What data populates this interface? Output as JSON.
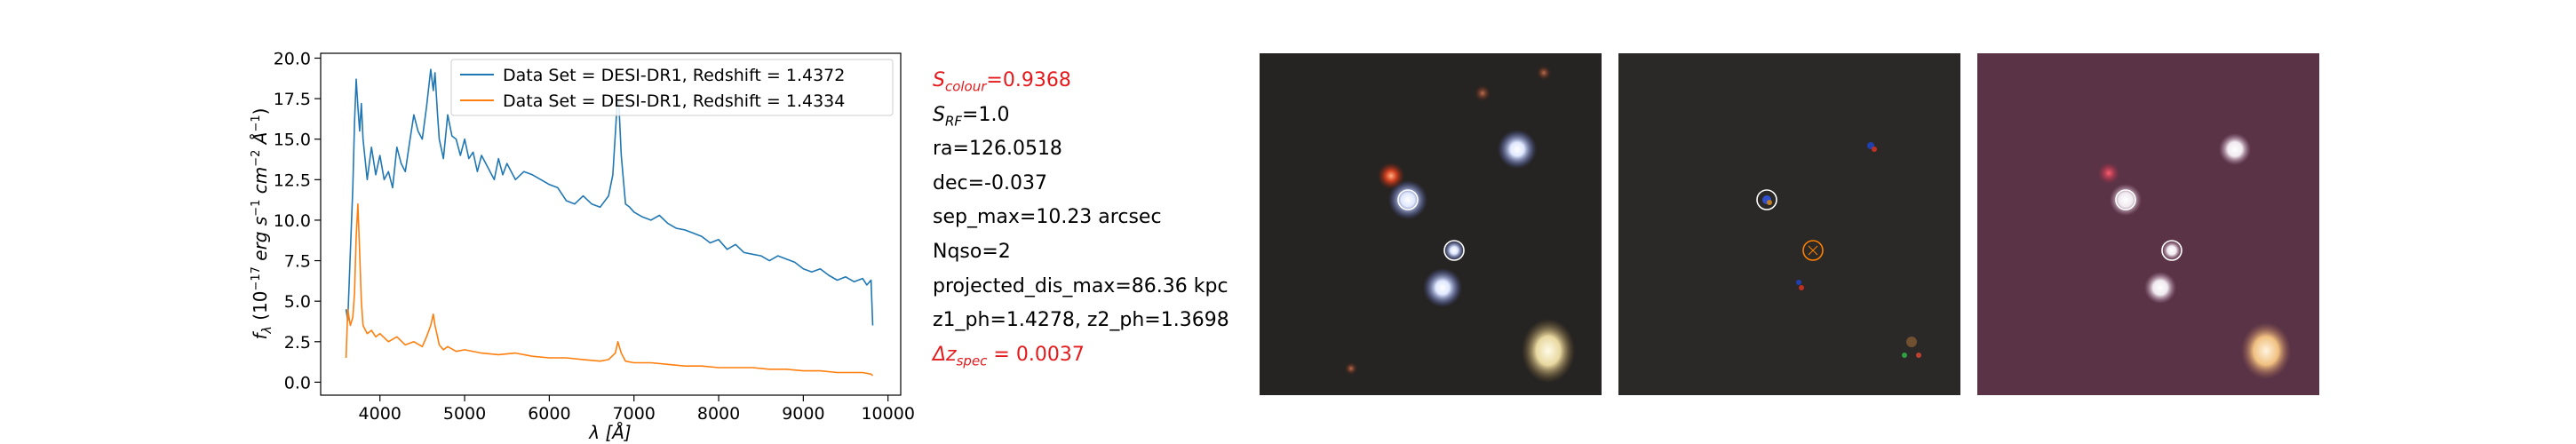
{
  "chart_data": {
    "type": "line",
    "xlabel": "λ [Å]",
    "ylabel": "f_λ (10^-17 erg s^-1 cm^-2 Å^-1)",
    "xlim": [
      3300,
      10150
    ],
    "ylim": [
      -0.8,
      20.3
    ],
    "xticks": [
      4000,
      5000,
      6000,
      7000,
      8000,
      9000,
      10000
    ],
    "yticks": [
      0.0,
      2.5,
      5.0,
      7.5,
      10.0,
      12.5,
      15.0,
      17.5,
      20.0
    ],
    "legend_position": "top-right",
    "grid": false,
    "series": [
      {
        "name": "Data Set = DESI-DR1, Redshift = 1.4372",
        "color": "#1f77b4",
        "x": [
          3600,
          3620,
          3650,
          3680,
          3700,
          3720,
          3740,
          3760,
          3780,
          3800,
          3850,
          3900,
          3950,
          4000,
          4050,
          4100,
          4150,
          4200,
          4250,
          4300,
          4350,
          4400,
          4450,
          4500,
          4550,
          4600,
          4630,
          4650,
          4680,
          4700,
          4750,
          4800,
          4850,
          4900,
          4950,
          5000,
          5050,
          5100,
          5150,
          5200,
          5250,
          5300,
          5350,
          5400,
          5450,
          5500,
          5600,
          5700,
          5800,
          5900,
          6000,
          6100,
          6200,
          6300,
          6400,
          6500,
          6600,
          6700,
          6750,
          6800,
          6820,
          6850,
          6900,
          6950,
          7000,
          7100,
          7200,
          7300,
          7400,
          7500,
          7600,
          7700,
          7800,
          7900,
          8000,
          8100,
          8200,
          8300,
          8400,
          8500,
          8600,
          8700,
          8800,
          8900,
          9000,
          9100,
          9200,
          9300,
          9400,
          9500,
          9600,
          9700,
          9750,
          9800,
          9820
        ],
        "y": [
          4.5,
          3.8,
          8.0,
          12.0,
          16.0,
          18.7,
          17.0,
          15.5,
          17.2,
          15.0,
          12.5,
          14.5,
          12.8,
          14.0,
          12.5,
          13.0,
          12.0,
          14.5,
          13.5,
          13.0,
          14.8,
          16.5,
          15.5,
          15.0,
          17.0,
          19.3,
          18.0,
          19.1,
          16.5,
          15.0,
          13.8,
          16.5,
          15.2,
          15.0,
          14.0,
          15.0,
          13.8,
          14.2,
          13.0,
          14.0,
          13.5,
          13.0,
          12.5,
          13.8,
          12.8,
          13.5,
          12.5,
          13.0,
          12.8,
          12.5,
          12.2,
          12.0,
          11.2,
          11.0,
          11.5,
          11.0,
          10.8,
          11.5,
          12.8,
          17.0,
          17.3,
          14.0,
          11.0,
          10.8,
          10.5,
          10.2,
          10.0,
          10.3,
          9.8,
          9.5,
          9.4,
          9.2,
          9.0,
          8.6,
          8.8,
          8.2,
          8.5,
          8.0,
          7.9,
          7.8,
          7.5,
          7.8,
          7.6,
          7.4,
          7.0,
          6.8,
          7.0,
          6.6,
          6.3,
          6.5,
          6.2,
          6.4,
          6.0,
          6.3,
          3.5
        ]
      },
      {
        "name": "Data Set = DESI-DR1, Redshift = 1.4334",
        "color": "#ff7f0e",
        "x": [
          3600,
          3620,
          3650,
          3680,
          3700,
          3720,
          3740,
          3760,
          3780,
          3800,
          3850,
          3900,
          3950,
          4000,
          4100,
          4200,
          4300,
          4400,
          4500,
          4550,
          4600,
          4630,
          4650,
          4680,
          4700,
          4750,
          4800,
          4900,
          5000,
          5200,
          5400,
          5600,
          5800,
          6000,
          6200,
          6400,
          6600,
          6700,
          6780,
          6810,
          6850,
          6900,
          7000,
          7200,
          7400,
          7600,
          7800,
          8000,
          8200,
          8400,
          8600,
          8800,
          9000,
          9200,
          9400,
          9600,
          9700,
          9800,
          9820
        ],
        "y": [
          1.5,
          4.5,
          3.5,
          4.0,
          5.5,
          9.0,
          11.0,
          8.0,
          5.0,
          3.5,
          3.0,
          3.2,
          2.8,
          3.0,
          2.5,
          2.8,
          2.3,
          2.5,
          2.2,
          2.8,
          3.5,
          4.2,
          3.5,
          2.8,
          2.3,
          2.0,
          2.2,
          1.9,
          2.0,
          1.8,
          1.7,
          1.8,
          1.6,
          1.5,
          1.5,
          1.4,
          1.3,
          1.4,
          1.8,
          2.5,
          1.8,
          1.3,
          1.2,
          1.2,
          1.1,
          1.0,
          1.0,
          0.9,
          0.9,
          0.9,
          0.8,
          0.8,
          0.7,
          0.7,
          0.6,
          0.6,
          0.6,
          0.5,
          0.4
        ]
      }
    ]
  },
  "info": {
    "s_colour": {
      "symbol": "S",
      "sub": "colour",
      "value": "=0.9368",
      "color": "#e41a1c"
    },
    "s_rf": {
      "symbol": "S",
      "sub": "RF",
      "value": "=1.0"
    },
    "ra": "ra=126.0518",
    "dec": "dec=-0.037",
    "sep_max": "sep_max=10.23 arcsec",
    "nqso": "Nqso=2",
    "projected_dis_max": "projected_dis_max=86.36 kpc",
    "z_ph": "z1_ph=1.4278, z2_ph=1.3698",
    "dz_spec": {
      "symbol": "Δz",
      "sub": "spec",
      "value": " = 0.0037",
      "color": "#e41a1c"
    }
  },
  "images": [
    {
      "name": "color-cutout"
    },
    {
      "name": "residual-cutout"
    },
    {
      "name": "enhanced-cutout"
    }
  ]
}
